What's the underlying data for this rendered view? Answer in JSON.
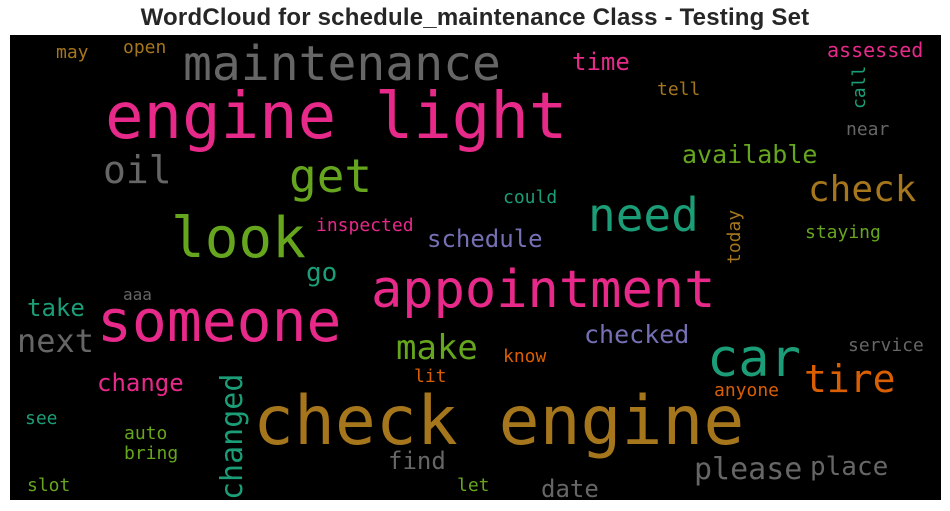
{
  "title": "WordCloud for schedule_maintenance Class - Testing Set",
  "chart_data": {
    "type": "wordcloud",
    "title": "WordCloud for schedule_maintenance Class - Testing Set",
    "background": "#000000",
    "words": [
      {
        "text": "engine light",
        "color": "#e7298a",
        "vertical": false
      },
      {
        "text": "check engine",
        "color": "#a6761d",
        "vertical": false
      },
      {
        "text": "someone",
        "color": "#e7298a",
        "vertical": false
      },
      {
        "text": "appointment",
        "color": "#e7298a",
        "vertical": false
      },
      {
        "text": "car",
        "color": "#1b9e77",
        "vertical": false
      },
      {
        "text": "look",
        "color": "#66a61e",
        "vertical": false
      },
      {
        "text": "maintenance",
        "color": "#666666",
        "vertical": false
      },
      {
        "text": "need",
        "color": "#1b9e77",
        "vertical": false
      },
      {
        "text": "get",
        "color": "#66a61e",
        "vertical": false
      },
      {
        "text": "check",
        "color": "#a6761d",
        "vertical": false
      },
      {
        "text": "tire",
        "color": "#d95f02",
        "vertical": false
      },
      {
        "text": "oil",
        "color": "#666666",
        "vertical": false
      },
      {
        "text": "make",
        "color": "#66a61e",
        "vertical": false
      },
      {
        "text": "next",
        "color": "#666666",
        "vertical": false
      },
      {
        "text": "changed",
        "color": "#1b9e77",
        "vertical": true
      },
      {
        "text": "please",
        "color": "#666666",
        "vertical": false
      },
      {
        "text": "place",
        "color": "#666666",
        "vertical": false
      },
      {
        "text": "available",
        "color": "#66a61e",
        "vertical": false
      },
      {
        "text": "checked",
        "color": "#7570b3",
        "vertical": false
      },
      {
        "text": "schedule",
        "color": "#7570b3",
        "vertical": false
      },
      {
        "text": "change",
        "color": "#e7298a",
        "vertical": false
      },
      {
        "text": "take",
        "color": "#1b9e77",
        "vertical": false
      },
      {
        "text": "time",
        "color": "#e7298a",
        "vertical": false
      },
      {
        "text": "go",
        "color": "#1b9e77",
        "vertical": false
      },
      {
        "text": "find",
        "color": "#666666",
        "vertical": false
      },
      {
        "text": "date",
        "color": "#666666",
        "vertical": false
      },
      {
        "text": "assessed",
        "color": "#e7298a",
        "vertical": false
      },
      {
        "text": "call",
        "color": "#1b9e77",
        "vertical": true
      },
      {
        "text": "tell",
        "color": "#a6761d",
        "vertical": false
      },
      {
        "text": "near",
        "color": "#666666",
        "vertical": false
      },
      {
        "text": "staying",
        "color": "#66a61e",
        "vertical": false
      },
      {
        "text": "today",
        "color": "#a6761d",
        "vertical": true
      },
      {
        "text": "inspected",
        "color": "#e7298a",
        "vertical": false
      },
      {
        "text": "could",
        "color": "#1b9e77",
        "vertical": false
      },
      {
        "text": "service",
        "color": "#666666",
        "vertical": false
      },
      {
        "text": "know",
        "color": "#d95f02",
        "vertical": false
      },
      {
        "text": "lit",
        "color": "#d95f02",
        "vertical": false
      },
      {
        "text": "anyone",
        "color": "#d95f02",
        "vertical": false
      },
      {
        "text": "aaa",
        "color": "#666666",
        "vertical": false
      },
      {
        "text": "may",
        "color": "#a6761d",
        "vertical": false
      },
      {
        "text": "open",
        "color": "#a6761d",
        "vertical": false
      },
      {
        "text": "see",
        "color": "#1b9e77",
        "vertical": false
      },
      {
        "text": "auto",
        "color": "#66a61e",
        "vertical": false
      },
      {
        "text": "bring",
        "color": "#66a61e",
        "vertical": false
      },
      {
        "text": "slot",
        "color": "#66a61e",
        "vertical": false
      },
      {
        "text": "let",
        "color": "#66a61e",
        "vertical": false
      }
    ]
  }
}
